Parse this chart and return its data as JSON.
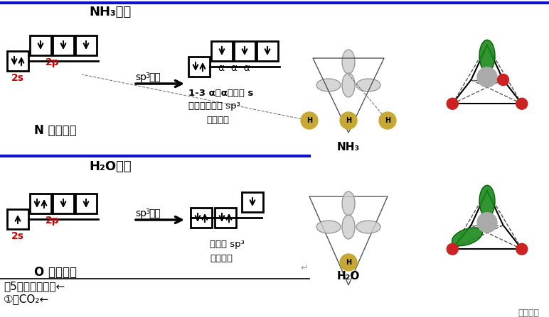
{
  "bg_color": "#ffffff",
  "title_nh3": "NH₃分子",
  "title_h2o": "H₂O分子",
  "label_n_ground": "N 原子基态",
  "label_o_ground": "O 原子基态",
  "label_2s": "2s",
  "label_2p": "2p",
  "label_aaa": "α  α  α",
  "label_hybrid_nh3_line1": "1-3 α（α代表含 s",
  "label_hybrid_nh3_line2": "成分）不等性 sp³",
  "label_hybrid_nh3_line3": "杂化轨道",
  "label_hybrid_h2o_1": "不等性 sp³",
  "label_hybrid_h2o_2": "杂化轨道",
  "label_bottom1": "（5）、部分杂化←",
  "label_bottom2": "①、CO₂←",
  "label_nh3_mol": "NH₃",
  "label_h2o_mol": "H₂O",
  "label_watermark": "漫游药化",
  "divider_color": "#1111cc",
  "mid_divider_color": "#1111cc",
  "red_color": "#cc0000",
  "black_color": "#000000"
}
